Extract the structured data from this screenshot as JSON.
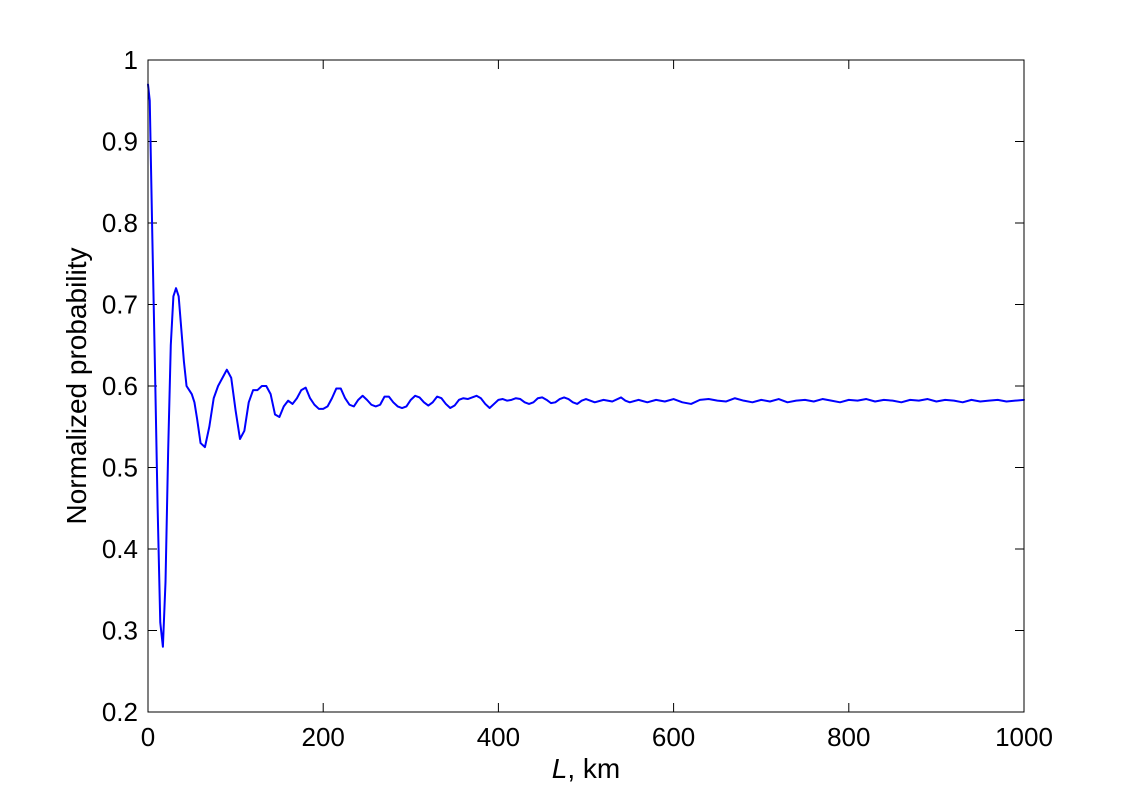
{
  "chart_data": {
    "type": "line",
    "title": "",
    "xlabel_var": "L",
    "xlabel_rest": ", km",
    "ylabel": "Normalized probability",
    "xlim": [
      0,
      1000
    ],
    "ylim": [
      0.2,
      1.0
    ],
    "xticks": [
      0,
      200,
      400,
      600,
      800,
      1000
    ],
    "xtick_labels": [
      "0",
      "200",
      "400",
      "600",
      "800",
      "1000"
    ],
    "yticks": [
      0.2,
      0.3,
      0.4,
      0.5,
      0.6,
      0.7,
      0.8,
      0.9,
      1.0
    ],
    "ytick_labels": [
      "0.2",
      "0.3",
      "0.4",
      "0.5",
      "0.6",
      "0.7",
      "0.8",
      "0.9",
      "1"
    ],
    "grid": false,
    "line_color": "#0000ff",
    "series": [
      {
        "x": [
          0,
          2,
          5,
          8,
          11,
          14,
          17,
          20,
          23,
          26,
          29,
          32,
          35,
          38,
          41,
          44,
          47,
          50,
          53,
          56,
          60,
          65,
          70,
          75,
          80,
          85,
          90,
          95,
          100,
          105,
          110,
          115,
          120,
          125,
          130,
          135,
          140,
          145,
          150,
          155,
          160,
          165,
          170,
          175,
          180,
          185,
          190,
          195,
          200,
          205,
          210,
          215,
          220,
          225,
          230,
          235,
          240,
          245,
          250,
          255,
          260,
          265,
          270,
          275,
          280,
          285,
          290,
          295,
          300,
          305,
          310,
          315,
          320,
          325,
          330,
          335,
          340,
          345,
          350,
          355,
          360,
          365,
          370,
          375,
          380,
          385,
          390,
          395,
          400,
          405,
          410,
          415,
          420,
          425,
          430,
          435,
          440,
          445,
          450,
          455,
          460,
          465,
          470,
          475,
          480,
          485,
          490,
          495,
          500,
          510,
          520,
          530,
          540,
          545,
          550,
          560,
          570,
          580,
          590,
          600,
          610,
          620,
          630,
          640,
          650,
          660,
          670,
          680,
          690,
          700,
          710,
          720,
          730,
          740,
          750,
          760,
          770,
          780,
          790,
          800,
          810,
          820,
          830,
          840,
          850,
          860,
          870,
          880,
          890,
          900,
          910,
          920,
          930,
          940,
          950,
          960,
          970,
          980,
          990,
          1000
        ],
        "values": [
          0.97,
          0.95,
          0.78,
          0.62,
          0.45,
          0.31,
          0.28,
          0.36,
          0.52,
          0.65,
          0.71,
          0.72,
          0.71,
          0.67,
          0.63,
          0.6,
          0.595,
          0.59,
          0.58,
          0.56,
          0.53,
          0.525,
          0.55,
          0.585,
          0.6,
          0.61,
          0.62,
          0.61,
          0.57,
          0.535,
          0.545,
          0.58,
          0.595,
          0.595,
          0.6,
          0.6,
          0.59,
          0.565,
          0.562,
          0.575,
          0.582,
          0.578,
          0.585,
          0.595,
          0.598,
          0.585,
          0.577,
          0.572,
          0.572,
          0.575,
          0.585,
          0.597,
          0.597,
          0.585,
          0.577,
          0.575,
          0.583,
          0.588,
          0.583,
          0.577,
          0.575,
          0.577,
          0.587,
          0.587,
          0.58,
          0.575,
          0.573,
          0.575,
          0.583,
          0.588,
          0.586,
          0.58,
          0.576,
          0.58,
          0.587,
          0.585,
          0.578,
          0.573,
          0.576,
          0.583,
          0.585,
          0.584,
          0.586,
          0.588,
          0.585,
          0.578,
          0.573,
          0.578,
          0.583,
          0.584,
          0.582,
          0.583,
          0.585,
          0.584,
          0.58,
          0.578,
          0.58,
          0.585,
          0.586,
          0.583,
          0.579,
          0.58,
          0.584,
          0.586,
          0.584,
          0.58,
          0.578,
          0.582,
          0.584,
          0.58,
          0.583,
          0.581,
          0.586,
          0.582,
          0.58,
          0.583,
          0.58,
          0.583,
          0.581,
          0.584,
          0.58,
          0.578,
          0.583,
          0.584,
          0.582,
          0.581,
          0.585,
          0.582,
          0.58,
          0.583,
          0.581,
          0.584,
          0.58,
          0.582,
          0.583,
          0.581,
          0.584,
          0.582,
          0.58,
          0.583,
          0.582,
          0.584,
          0.581,
          0.583,
          0.582,
          0.58,
          0.583,
          0.582,
          0.584,
          0.581,
          0.583,
          0.582,
          0.58,
          0.583,
          0.581,
          0.582,
          0.583,
          0.581,
          0.582,
          0.583
        ]
      }
    ]
  }
}
